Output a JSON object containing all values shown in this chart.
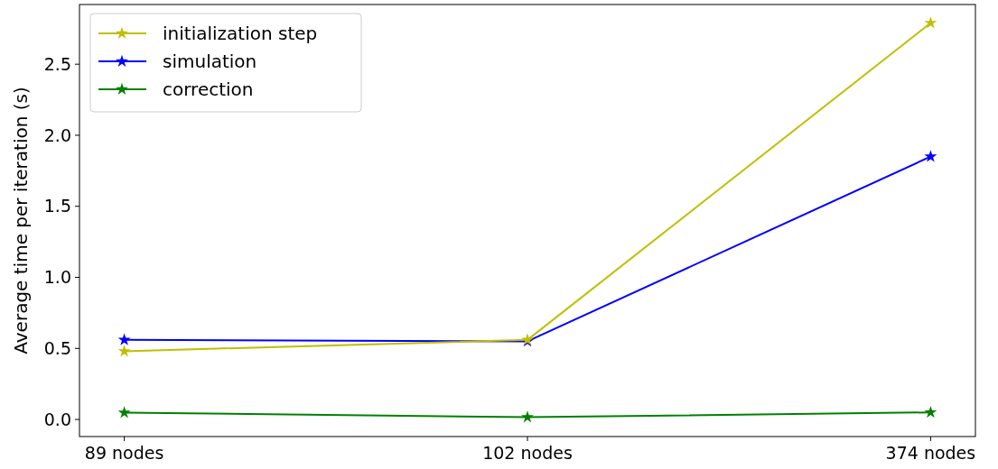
{
  "chart_data": {
    "type": "line",
    "ylabel": "Average time per iteration (s)",
    "categories": [
      "89 nodes",
      "102 nodes",
      "374 nodes"
    ],
    "series": [
      {
        "name": "initialization step",
        "color": "#bfbf00",
        "values": [
          0.48,
          0.56,
          2.79
        ]
      },
      {
        "name": "simulation",
        "color": "#0000ff",
        "values": [
          0.56,
          0.55,
          1.85
        ]
      },
      {
        "name": "correction",
        "color": "#008000",
        "values": [
          0.048,
          0.016,
          0.05
        ]
      }
    ],
    "ylim": [
      -0.12,
      2.92
    ],
    "yticks": [
      {
        "value": 0,
        "label": "0.0"
      },
      0.5,
      {
        "value": 1,
        "label": "1.0"
      },
      1.5,
      {
        "value": 2,
        "label": "2.0"
      },
      2.5
    ],
    "marker": "star",
    "legend": "top left",
    "grid": false
  }
}
